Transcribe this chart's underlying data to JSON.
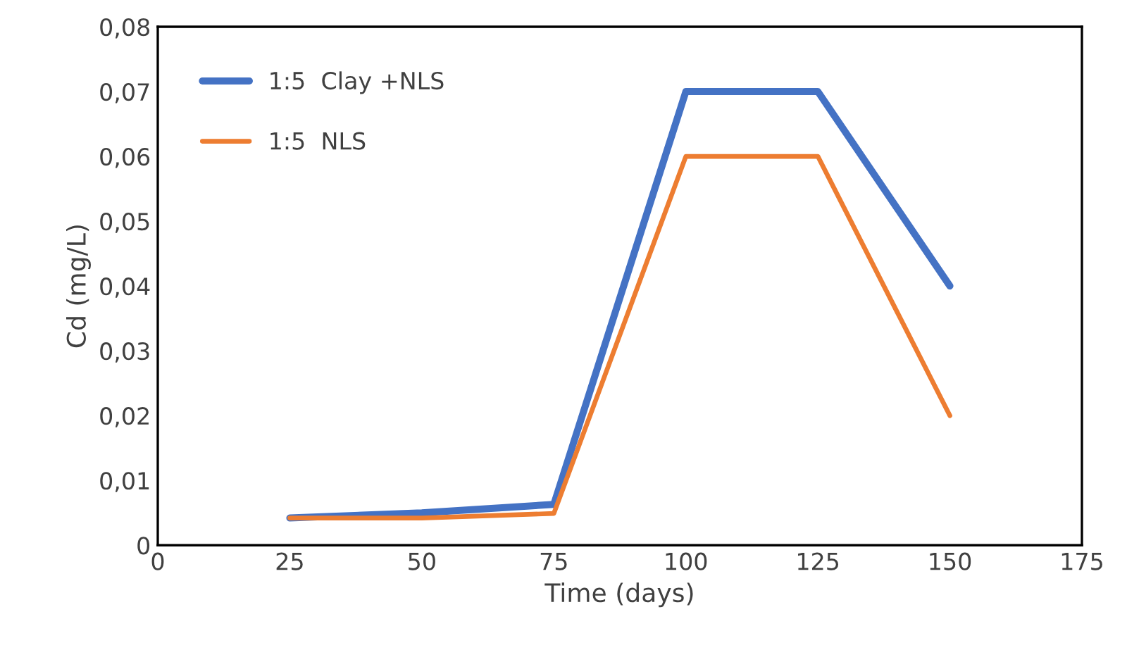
{
  "chart_data": {
    "type": "line",
    "xlabel": "Time (days)",
    "ylabel": "Cd (mg/L)",
    "x": [
      25,
      50,
      75,
      100,
      125,
      150
    ],
    "series": [
      {
        "name": "1:5  Clay +NLS",
        "color": "#4472c4",
        "values": [
          0.0042,
          0.005,
          0.0063,
          0.07,
          0.07,
          0.04
        ]
      },
      {
        "name": "1:5  NLS",
        "color": "#ed7d31",
        "values": [
          0.0042,
          0.0042,
          0.0049,
          0.06,
          0.06,
          0.02
        ]
      }
    ],
    "xlim": [
      0,
      175
    ],
    "xticks": [
      0,
      25,
      50,
      75,
      100,
      125,
      150,
      175
    ],
    "ylim": [
      0,
      0.08
    ],
    "yticks": [
      {
        "value": 0,
        "label": "0"
      },
      {
        "value": 0.01,
        "label": "0,01"
      },
      {
        "value": 0.02,
        "label": "0,02"
      },
      {
        "value": 0.03,
        "label": "0,03"
      },
      {
        "value": 0.04,
        "label": "0,04"
      },
      {
        "value": 0.05,
        "label": "0,05"
      },
      {
        "value": 0.06,
        "label": "0,06"
      },
      {
        "value": 0.07,
        "label": "0,07"
      },
      {
        "value": 0.08,
        "label": "0,08"
      }
    ],
    "grid": false,
    "legend": "top left",
    "marker": "none",
    "line_style": "solid"
  }
}
